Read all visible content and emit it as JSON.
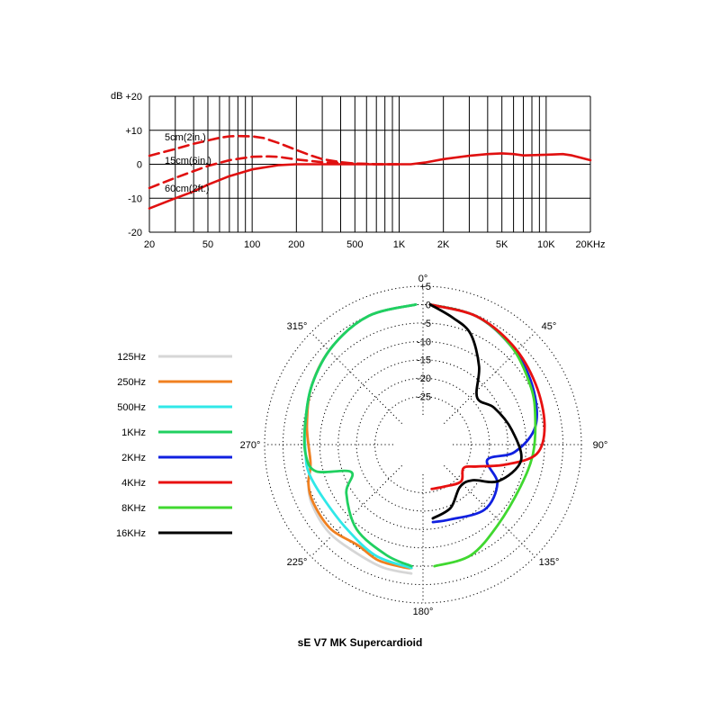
{
  "caption": "sE V7 MK Supercardioid",
  "colors": {
    "125Hz": "#d6d6d6",
    "250Hz": "#f08020",
    "500Hz": "#30e8e8",
    "1KHz": "#20d060",
    "2KHz": "#1020e0",
    "4KHz": "#e81010",
    "8KHz": "#40d830",
    "16KHz": "#000000",
    "proximity": "#e01010"
  },
  "chart_data": [
    {
      "type": "line",
      "xscale": "log",
      "xlim": [
        20,
        20000
      ],
      "ylim": [
        -20,
        20
      ],
      "ylabel": "dB",
      "y_ticks": [
        "+20",
        "+10",
        "0",
        "-10",
        "-20"
      ],
      "x_ticks": [
        "20",
        "50",
        "100",
        "200",
        "500",
        "1K",
        "2K",
        "5K",
        "10K",
        "20KHz"
      ],
      "grid": true,
      "series": [
        {
          "name": "5cm(2in.)",
          "style": "dashed",
          "points": [
            [
              20,
              2.5
            ],
            [
              30,
              4.5
            ],
            [
              40,
              6
            ],
            [
              50,
              7
            ],
            [
              60,
              7.8
            ],
            [
              70,
              8.2
            ],
            [
              80,
              8.3
            ],
            [
              100,
              8.2
            ],
            [
              120,
              7.7
            ],
            [
              150,
              6.3
            ],
            [
              200,
              4.2
            ],
            [
              250,
              2.6
            ],
            [
              300,
              1.5
            ],
            [
              400,
              0.6
            ],
            [
              500,
              0.2
            ],
            [
              700,
              0
            ],
            [
              1000,
              0
            ]
          ]
        },
        {
          "name": "15cm(6in.)",
          "style": "dashed",
          "points": [
            [
              20,
              -7
            ],
            [
              30,
              -4
            ],
            [
              40,
              -2
            ],
            [
              50,
              -0.5
            ],
            [
              70,
              1.2
            ],
            [
              100,
              2.2
            ],
            [
              130,
              2.3
            ],
            [
              150,
              2.2
            ],
            [
              200,
              1.4
            ],
            [
              300,
              0.6
            ],
            [
              500,
              0.2
            ],
            [
              700,
              0
            ],
            [
              1000,
              0
            ]
          ]
        },
        {
          "name": "60cm(2ft.)",
          "style": "solid",
          "points": [
            [
              20,
              -13
            ],
            [
              30,
              -10
            ],
            [
              40,
              -8
            ],
            [
              50,
              -6
            ],
            [
              70,
              -3.5
            ],
            [
              100,
              -1.5
            ],
            [
              150,
              -0.3
            ],
            [
              200,
              0
            ],
            [
              500,
              0
            ],
            [
              1000,
              0
            ],
            [
              1200,
              0
            ],
            [
              1500,
              0.5
            ],
            [
              2000,
              1.5
            ],
            [
              3000,
              2.5
            ],
            [
              4000,
              3
            ],
            [
              5000,
              3.2
            ],
            [
              6000,
              3
            ],
            [
              7000,
              2.6
            ],
            [
              10000,
              2.8
            ],
            [
              13000,
              3
            ],
            [
              15000,
              2.6
            ],
            [
              20000,
              1.2
            ]
          ]
        }
      ]
    },
    {
      "type": "polar",
      "radial_ticks": [
        "+5",
        "0",
        "-5",
        "-10",
        "-15",
        "-20",
        "-25"
      ],
      "rlim": [
        -30,
        5
      ],
      "angle_labels": [
        "0°",
        "45°",
        "90°",
        "135°",
        "180°",
        "225°",
        "270°",
        "315°"
      ],
      "legend_position": "left",
      "series": [
        {
          "name": "125Hz",
          "half": "left",
          "points": [
            [
              0,
              0
            ],
            [
              20,
              -0.8
            ],
            [
              40,
              -3
            ],
            [
              60,
              -5.5
            ],
            [
              80,
              -8
            ],
            [
              100,
              -9
            ],
            [
              110,
              -7
            ],
            [
              120,
              -5.5
            ],
            [
              135,
              -4.5
            ],
            [
              150,
              -4.5
            ],
            [
              165,
              -3.5
            ],
            [
              178,
              -3
            ]
          ]
        },
        {
          "name": "250Hz",
          "half": "left",
          "points": [
            [
              0,
              0
            ],
            [
              20,
              -0.8
            ],
            [
              40,
              -3
            ],
            [
              60,
              -5.5
            ],
            [
              80,
              -8
            ],
            [
              100,
              -9
            ],
            [
              110,
              -7
            ],
            [
              120,
              -6
            ],
            [
              135,
              -5.5
            ],
            [
              150,
              -6.5
            ],
            [
              162,
              -5
            ],
            [
              175,
              -4.5
            ],
            [
              178,
              -4.5
            ]
          ]
        },
        {
          "name": "500Hz",
          "half": "left",
          "points": [
            [
              0,
              0
            ],
            [
              20,
              -0.8
            ],
            [
              40,
              -3
            ],
            [
              60,
              -5.5
            ],
            [
              80,
              -7.5
            ],
            [
              95,
              -8
            ],
            [
              105,
              -8
            ],
            [
              120,
              -9
            ],
            [
              140,
              -8.5
            ],
            [
              160,
              -6
            ],
            [
              178,
              -4.5
            ]
          ]
        },
        {
          "name": "1KHz",
          "half": "left",
          "points": [
            [
              0,
              0
            ],
            [
              20,
              -0.8
            ],
            [
              40,
              -3
            ],
            [
              60,
              -5.5
            ],
            [
              80,
              -7.5
            ],
            [
              95,
              -8
            ],
            [
              105,
              -10
            ],
            [
              113,
              -19
            ],
            [
              125,
              -15
            ],
            [
              145,
              -10
            ],
            [
              165,
              -7
            ],
            [
              178,
              -5
            ]
          ]
        },
        {
          "name": "2KHz",
          "half": "right",
          "points": [
            [
              0,
              0
            ],
            [
              20,
              -1
            ],
            [
              40,
              -3.5
            ],
            [
              60,
              -6
            ],
            [
              80,
              -9
            ],
            [
              95,
              -15
            ],
            [
              105,
              -22
            ],
            [
              120,
              -17
            ],
            [
              140,
              -15
            ],
            [
              165,
              -17
            ],
            [
              178,
              -17
            ]
          ]
        },
        {
          "name": "4KHz",
          "half": "right",
          "points": [
            [
              0,
              0
            ],
            [
              20,
              -1
            ],
            [
              40,
              -3
            ],
            [
              60,
              -5
            ],
            [
              80,
              -6.5
            ],
            [
              95,
              -9
            ],
            [
              105,
              -17
            ],
            [
              115,
              -24
            ],
            [
              125,
              -27
            ],
            [
              140,
              -25
            ],
            [
              160,
              -26
            ],
            [
              178,
              -26
            ]
          ]
        },
        {
          "name": "8KHz",
          "half": "right",
          "points": [
            [
              0,
              0
            ],
            [
              20,
              -1
            ],
            [
              40,
              -3.5
            ],
            [
              60,
              -6.5
            ],
            [
              75,
              -8.5
            ],
            [
              95,
              -10
            ],
            [
              115,
              -11
            ],
            [
              140,
              -9.5
            ],
            [
              160,
              -6
            ],
            [
              178,
              -5
            ]
          ]
        },
        {
          "name": "16KHz",
          "half": "right",
          "points": [
            [
              0,
              0
            ],
            [
              10,
              -3
            ],
            [
              20,
              -6
            ],
            [
              32,
              -13
            ],
            [
              45,
              -20
            ],
            [
              60,
              -18
            ],
            [
              80,
              -15.5
            ],
            [
              100,
              -13
            ],
            [
              118,
              -17
            ],
            [
              130,
              -23
            ],
            [
              145,
              -24
            ],
            [
              162,
              -20
            ],
            [
              178,
              -18
            ]
          ]
        }
      ]
    }
  ]
}
